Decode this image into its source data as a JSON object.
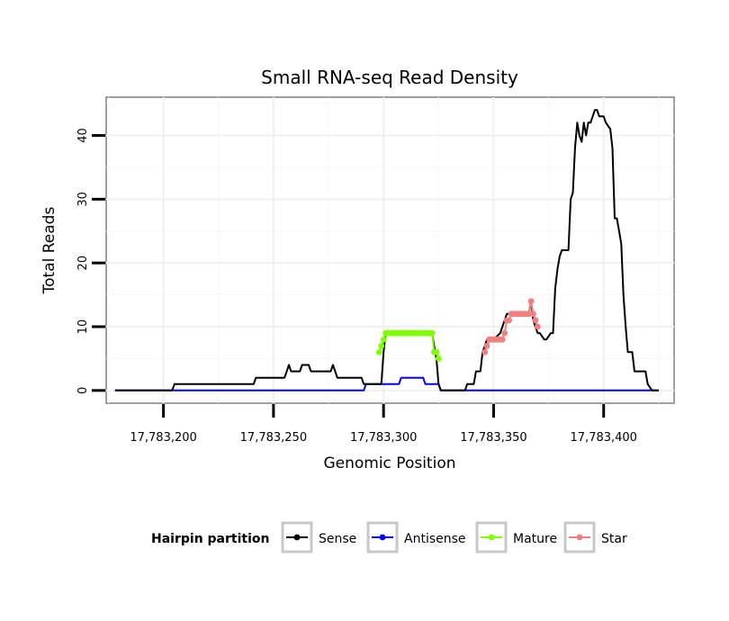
{
  "chart_data": {
    "type": "line",
    "title": "Small RNA-seq Read Density",
    "xlabel": "Genomic Position",
    "ylabel": "Total Reads",
    "xlim": [
      17783174,
      17783432
    ],
    "ylim": [
      -2,
      46
    ],
    "x_ticks": [
      17783200,
      17783250,
      17783300,
      17783350,
      17783400
    ],
    "x_tick_labels": [
      "17,783,200",
      "17,783,250",
      "17,783,300",
      "17,783,350",
      "17,783,400"
    ],
    "y_ticks": [
      0,
      10,
      20,
      30,
      40
    ],
    "y_tick_labels": [
      "0",
      "10",
      "20",
      "30",
      "40"
    ],
    "grid": true,
    "legend": {
      "title": "Hairpin partition",
      "position": "bottom",
      "items": [
        {
          "label": "Sense",
          "color": "#000000"
        },
        {
          "label": "Antisense",
          "color": "#0000ff"
        },
        {
          "label": "Mature",
          "color": "#7fff00"
        },
        {
          "label": "Star",
          "color": "#f08080"
        }
      ]
    },
    "series": [
      {
        "name": "Sense",
        "color": "#000000",
        "x": [
          17783178,
          17783204,
          17783205,
          17783225,
          17783226,
          17783241,
          17783242,
          17783255,
          17783256,
          17783257,
          17783258,
          17783262,
          17783263,
          17783266,
          17783267,
          17783276,
          17783277,
          17783278,
          17783279,
          17783287,
          17783288,
          17783290,
          17783291,
          17783297,
          17783298,
          17783299,
          17783300,
          17783301,
          17783322,
          17783323,
          17783324,
          17783325,
          17783326,
          17783332,
          17783337,
          17783338,
          17783341,
          17783342,
          17783344,
          17783345,
          17783346,
          17783347,
          17783349,
          17783350,
          17783353,
          17783355,
          17783356,
          17783358,
          17783366,
          17783367,
          17783368,
          17783369,
          17783370,
          17783371,
          17783373,
          17783374,
          17783376,
          17783377,
          17783378,
          17783379,
          17783380,
          17783381,
          17783382,
          17783384,
          17783385,
          17783386,
          17783387,
          17783388,
          17783389,
          17783390,
          17783391,
          17783392,
          17783393,
          17783394,
          17783396,
          17783397,
          17783398,
          17783400,
          17783401,
          17783403,
          17783404,
          17783405,
          17783406,
          17783407,
          17783408,
          17783409,
          17783410,
          17783411,
          17783412,
          17783413,
          17783414,
          17783416,
          17783417,
          17783419,
          17783420,
          17783422,
          17783423,
          17783424,
          17783425
        ],
        "values": [
          0,
          0,
          1,
          1,
          1,
          1,
          2,
          2,
          3,
          4,
          3,
          3,
          4,
          4,
          3,
          3,
          4,
          3,
          2,
          2,
          2,
          2,
          1,
          1,
          1,
          1,
          6,
          9,
          9,
          7,
          5,
          1,
          0,
          0,
          0,
          1,
          1,
          3,
          3,
          6,
          7,
          8,
          8,
          8,
          9,
          11,
          12,
          12,
          12,
          14,
          11,
          10,
          9,
          9,
          8,
          8,
          9,
          9,
          16,
          19,
          21,
          22,
          22,
          22,
          30,
          31,
          38,
          42,
          40,
          39,
          42,
          40,
          42,
          42,
          44,
          44,
          43,
          43,
          42,
          41,
          38,
          27,
          27,
          25,
          23,
          15,
          10,
          6,
          6,
          6,
          3,
          3,
          3,
          3,
          1,
          0,
          0,
          0,
          0
        ]
      },
      {
        "name": "Antisense",
        "color": "#0000ff",
        "x": [
          17783178,
          17783291,
          17783292,
          17783300,
          17783301,
          17783307,
          17783308,
          17783318,
          17783319,
          17783322,
          17783323,
          17783325,
          17783326,
          17783425
        ],
        "values": [
          0,
          0,
          1,
          1,
          1,
          1,
          2,
          2,
          1,
          1,
          1,
          1,
          0,
          0
        ]
      },
      {
        "name": "Mature",
        "color": "#7fff00",
        "x": [
          17783298,
          17783299,
          17783300,
          17783301,
          17783302,
          17783303,
          17783304,
          17783305,
          17783306,
          17783307,
          17783308,
          17783309,
          17783310,
          17783311,
          17783312,
          17783313,
          17783314,
          17783315,
          17783316,
          17783317,
          17783318,
          17783319,
          17783320,
          17783321,
          17783322,
          17783323,
          17783324,
          17783325
        ],
        "values": [
          6,
          7,
          8,
          9,
          9,
          9,
          9,
          9,
          9,
          9,
          9,
          9,
          9,
          9,
          9,
          9,
          9,
          9,
          9,
          9,
          9,
          9,
          9,
          9,
          9,
          6,
          6,
          5
        ]
      },
      {
        "name": "Star",
        "color": "#f08080",
        "x": [
          17783346,
          17783347,
          17783348,
          17783349,
          17783350,
          17783351,
          17783352,
          17783353,
          17783354,
          17783355,
          17783356,
          17783357,
          17783358,
          17783359,
          17783360,
          17783361,
          17783362,
          17783363,
          17783364,
          17783365,
          17783366,
          17783367,
          17783368,
          17783369,
          17783370
        ],
        "values": [
          6,
          7,
          8,
          8,
          8,
          8,
          8,
          8,
          8,
          9,
          11,
          11,
          12,
          12,
          12,
          12,
          12,
          12,
          12,
          12,
          12,
          14,
          12,
          11,
          10
        ]
      }
    ]
  }
}
